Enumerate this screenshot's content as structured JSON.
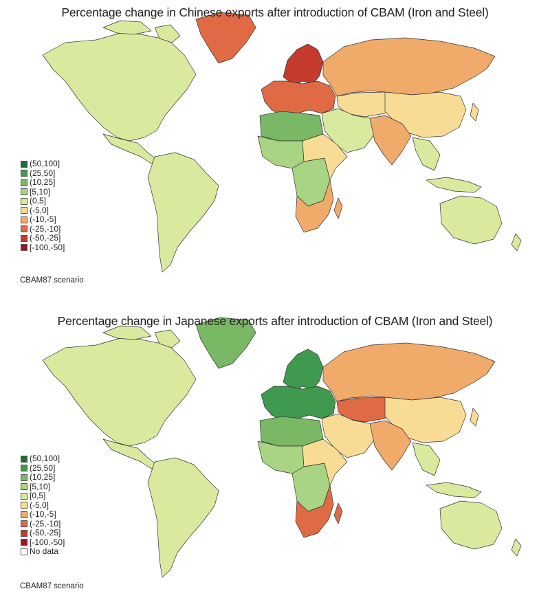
{
  "maps": [
    {
      "title": "Percentage change in Chinese exports after introduction of CBAM (Iron and Steel)",
      "scenario": "CBAM87 scenario",
      "legend": [
        {
          "label": "(50,100]",
          "color": "#1e6b34"
        },
        {
          "label": "(25,50]",
          "color": "#3f9a4f"
        },
        {
          "label": "(10,25]",
          "color": "#79b865"
        },
        {
          "label": "[5,10]",
          "color": "#a9d483"
        },
        {
          "label": "(0,5]",
          "color": "#d9ea9f"
        },
        {
          "label": "(-5,0]",
          "color": "#f8dc95"
        },
        {
          "label": "(-10,-5]",
          "color": "#f0aa6a"
        },
        {
          "label": "(-25,-10]",
          "color": "#e06a44"
        },
        {
          "label": "(-50,-25]",
          "color": "#c43a2d"
        },
        {
          "label": "[-100,-50]",
          "color": "#9c1326"
        }
      ],
      "regions": {
        "north_america": "(0,5]",
        "central_america": "(0,5]",
        "south_america": "(0,5]",
        "greenland": "(-25,-10]",
        "scandinavia": "(-50,-25]",
        "europe": "(-25,-10]",
        "russia": "(-10,-5]",
        "central_asia": "(-5,0]",
        "china": "(-5,0]",
        "middle_east": "(0,5]",
        "india": "(-10,-5]",
        "southeast_asia": "(0,5]",
        "north_africa": "(10,25]",
        "west_africa": "[5,10]",
        "central_africa": "[5,10]",
        "east_africa": "(-5,0]",
        "southern_africa": "(-10,-5]",
        "australia": "(0,5]"
      }
    },
    {
      "title": "Percentage change in Japanese exports after introduction of CBAM (Iron and Steel)",
      "scenario": "CBAM87 scenario",
      "legend": [
        {
          "label": "(50,100]",
          "color": "#1e6b34"
        },
        {
          "label": "(25,50]",
          "color": "#3f9a4f"
        },
        {
          "label": "(10,25]",
          "color": "#79b865"
        },
        {
          "label": "[5,10]",
          "color": "#a9d483"
        },
        {
          "label": "[0,5]",
          "color": "#d9ea9f"
        },
        {
          "label": "(-5,0]",
          "color": "#f8dc95"
        },
        {
          "label": "(-10,-5]",
          "color": "#f0aa6a"
        },
        {
          "label": "(-25,-10]",
          "color": "#e06a44"
        },
        {
          "label": "(-50,-25]",
          "color": "#c43a2d"
        },
        {
          "label": "[-100,-50]",
          "color": "#9c1326"
        },
        {
          "label": "No data",
          "color": "#ffffff"
        }
      ],
      "regions": {
        "north_america": "[0,5]",
        "central_america": "[0,5]",
        "south_america": "[0,5]",
        "greenland": "(10,25]",
        "scandinavia": "(25,50]",
        "europe": "(25,50]",
        "russia": "(-10,-5]",
        "central_asia": "(-25,-10]",
        "china": "(-5,0]",
        "middle_east": "(-5,0]",
        "india": "(-10,-5]",
        "southeast_asia": "[0,5]",
        "north_africa": "(10,25]",
        "west_africa": "[5,10]",
        "central_africa": "[5,10]",
        "east_africa": "(-5,0]",
        "southern_africa": "(-25,-10]",
        "australia": "[0,5]"
      }
    }
  ]
}
